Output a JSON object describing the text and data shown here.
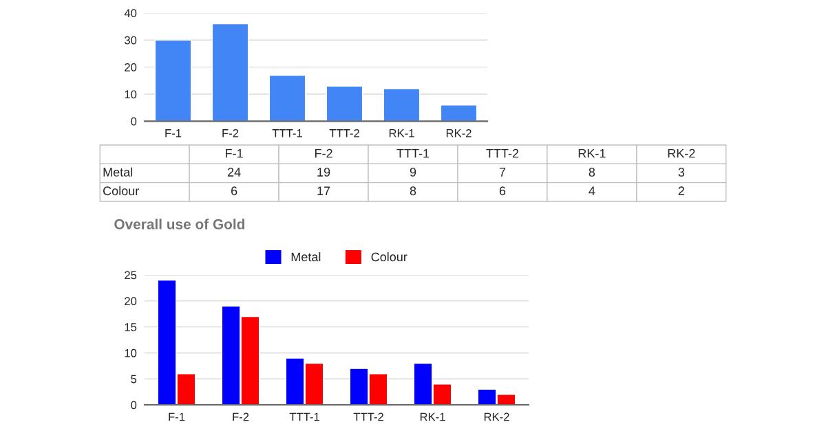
{
  "chart_data": [
    {
      "type": "bar",
      "categories": [
        "F-1",
        "F-2",
        "TTT-1",
        "TTT-2",
        "RK-1",
        "RK-2"
      ],
      "values": [
        30,
        36,
        17,
        13,
        12,
        6
      ],
      "color": "#4285f4",
      "ylim": [
        0,
        40
      ],
      "yticks": [
        0,
        10,
        20,
        30,
        40
      ],
      "grid": "y"
    },
    {
      "type": "other",
      "categories": [
        "F-1",
        "F-2",
        "TTT-1",
        "TTT-2",
        "RK-1",
        "RK-2"
      ],
      "data_labels": true,
      "series": [
        {
          "name": "Metal",
          "values": [
            24,
            19,
            9,
            7,
            8,
            3
          ]
        },
        {
          "name": "Colour",
          "values": [
            6,
            17,
            8,
            6,
            4,
            2
          ]
        }
      ]
    },
    {
      "type": "bar",
      "title": "Overall use of Gold",
      "categories": [
        "F-1",
        "F-2",
        "TTT-1",
        "TTT-2",
        "RK-1",
        "RK-2"
      ],
      "ylim": [
        0,
        25
      ],
      "yticks": [
        0,
        5,
        10,
        15,
        20,
        25
      ],
      "grid": "y",
      "legend": "top",
      "series": [
        {
          "name": "Metal",
          "color": "#0000ff",
          "values": [
            24,
            19,
            9,
            7,
            8,
            3
          ]
        },
        {
          "name": "Colour",
          "color": "#ff0000",
          "values": [
            6,
            17,
            8,
            6,
            4,
            2
          ]
        }
      ]
    }
  ]
}
